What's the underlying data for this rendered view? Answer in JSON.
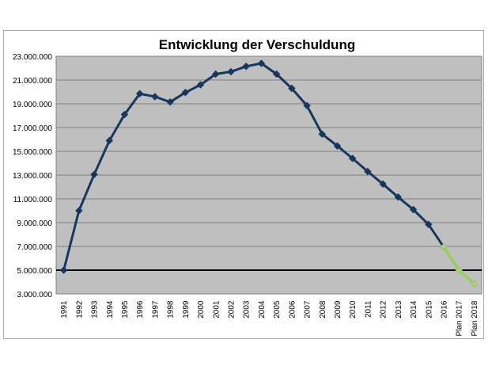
{
  "chart_data": {
    "type": "line",
    "title": "Entwicklung der Verschuldung",
    "xlabel": "",
    "ylabel": "",
    "ylim": [
      3000000,
      23000000
    ],
    "y_ticks": [
      3000000,
      5000000,
      7000000,
      9000000,
      11000000,
      13000000,
      15000000,
      17000000,
      19000000,
      21000000,
      23000000
    ],
    "y_tick_labels": [
      "3.000.000",
      "5.000.000",
      "7.000.000",
      "9.000.000",
      "11.000.000",
      "13.000.000",
      "15.000.000",
      "17.000.000",
      "19.000.000",
      "21.000.000",
      "23.000.000"
    ],
    "categories": [
      "1991",
      "1992",
      "1993",
      "1994",
      "1995",
      "1996",
      "1997",
      "1998",
      "1999",
      "2000",
      "2001",
      "2002",
      "2003",
      "2004",
      "2005",
      "2006",
      "2007",
      "2008",
      "2009",
      "2010",
      "2011",
      "2012",
      "2013",
      "2014",
      "2015",
      "2016",
      "Plan 2017",
      "Plan 2018"
    ],
    "series": [
      {
        "color": "#17375e",
        "marker": "diamond",
        "values": [
          5000000,
          10000000,
          13050000,
          15900000,
          18100000,
          19850000,
          19600000,
          19150000,
          19950000,
          20600000,
          21500000,
          21700000,
          22150000,
          22400000,
          21500000,
          20300000,
          18850000,
          16450000,
          15450000,
          14400000,
          13300000,
          12250000,
          11150000,
          10100000,
          8850000,
          6950000,
          null,
          null
        ]
      },
      {
        "color": "#92d050",
        "marker": "diamond-open",
        "values": [
          null,
          null,
          null,
          null,
          null,
          null,
          null,
          null,
          null,
          null,
          null,
          null,
          null,
          null,
          null,
          null,
          null,
          null,
          null,
          null,
          null,
          null,
          null,
          null,
          null,
          6950000,
          5000000,
          3850000
        ]
      }
    ],
    "reference_line": {
      "value": 5000000,
      "color": "#000000"
    },
    "plot_background": "#bfbfbf",
    "gridlines": true,
    "legend": "none"
  }
}
